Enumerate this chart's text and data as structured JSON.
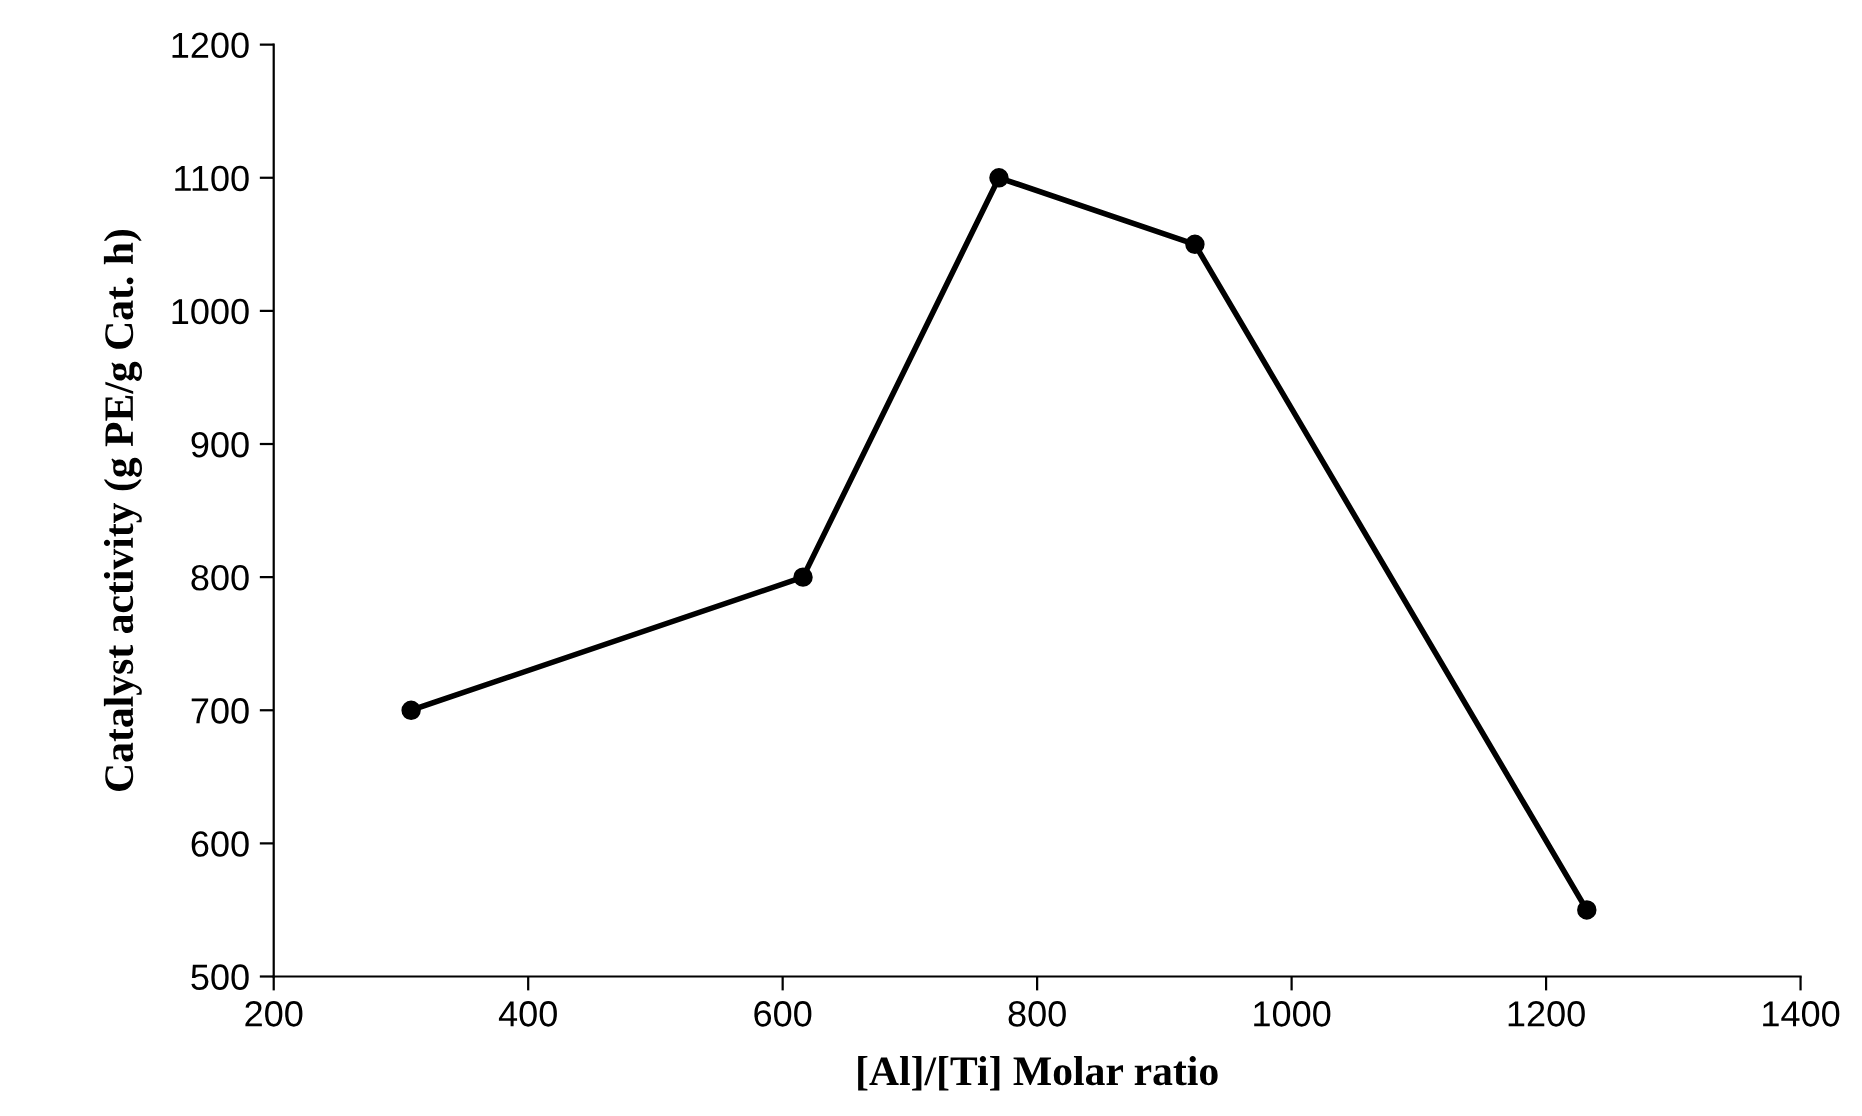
{
  "chart_data": {
    "type": "line",
    "xlabel": "[Al]/[Ti] Molar ratio",
    "ylabel": "Catalyst activity (g PE/g Cat. h)",
    "x": [
      308,
      616,
      770,
      924,
      1232
    ],
    "series": [
      {
        "color": "#000000",
        "values": [
          700,
          800,
          1100,
          1050,
          550
        ]
      }
    ],
    "xlim": [
      200,
      1400
    ],
    "xticks": [
      200,
      400,
      600,
      800,
      1000,
      1200,
      1400
    ],
    "ylim": [
      500,
      1200
    ],
    "yticks": [
      500,
      600,
      700,
      800,
      900,
      1000,
      1100,
      1200
    ],
    "marker": "circle",
    "line_style": "solid",
    "grid": false,
    "legend": false
  }
}
